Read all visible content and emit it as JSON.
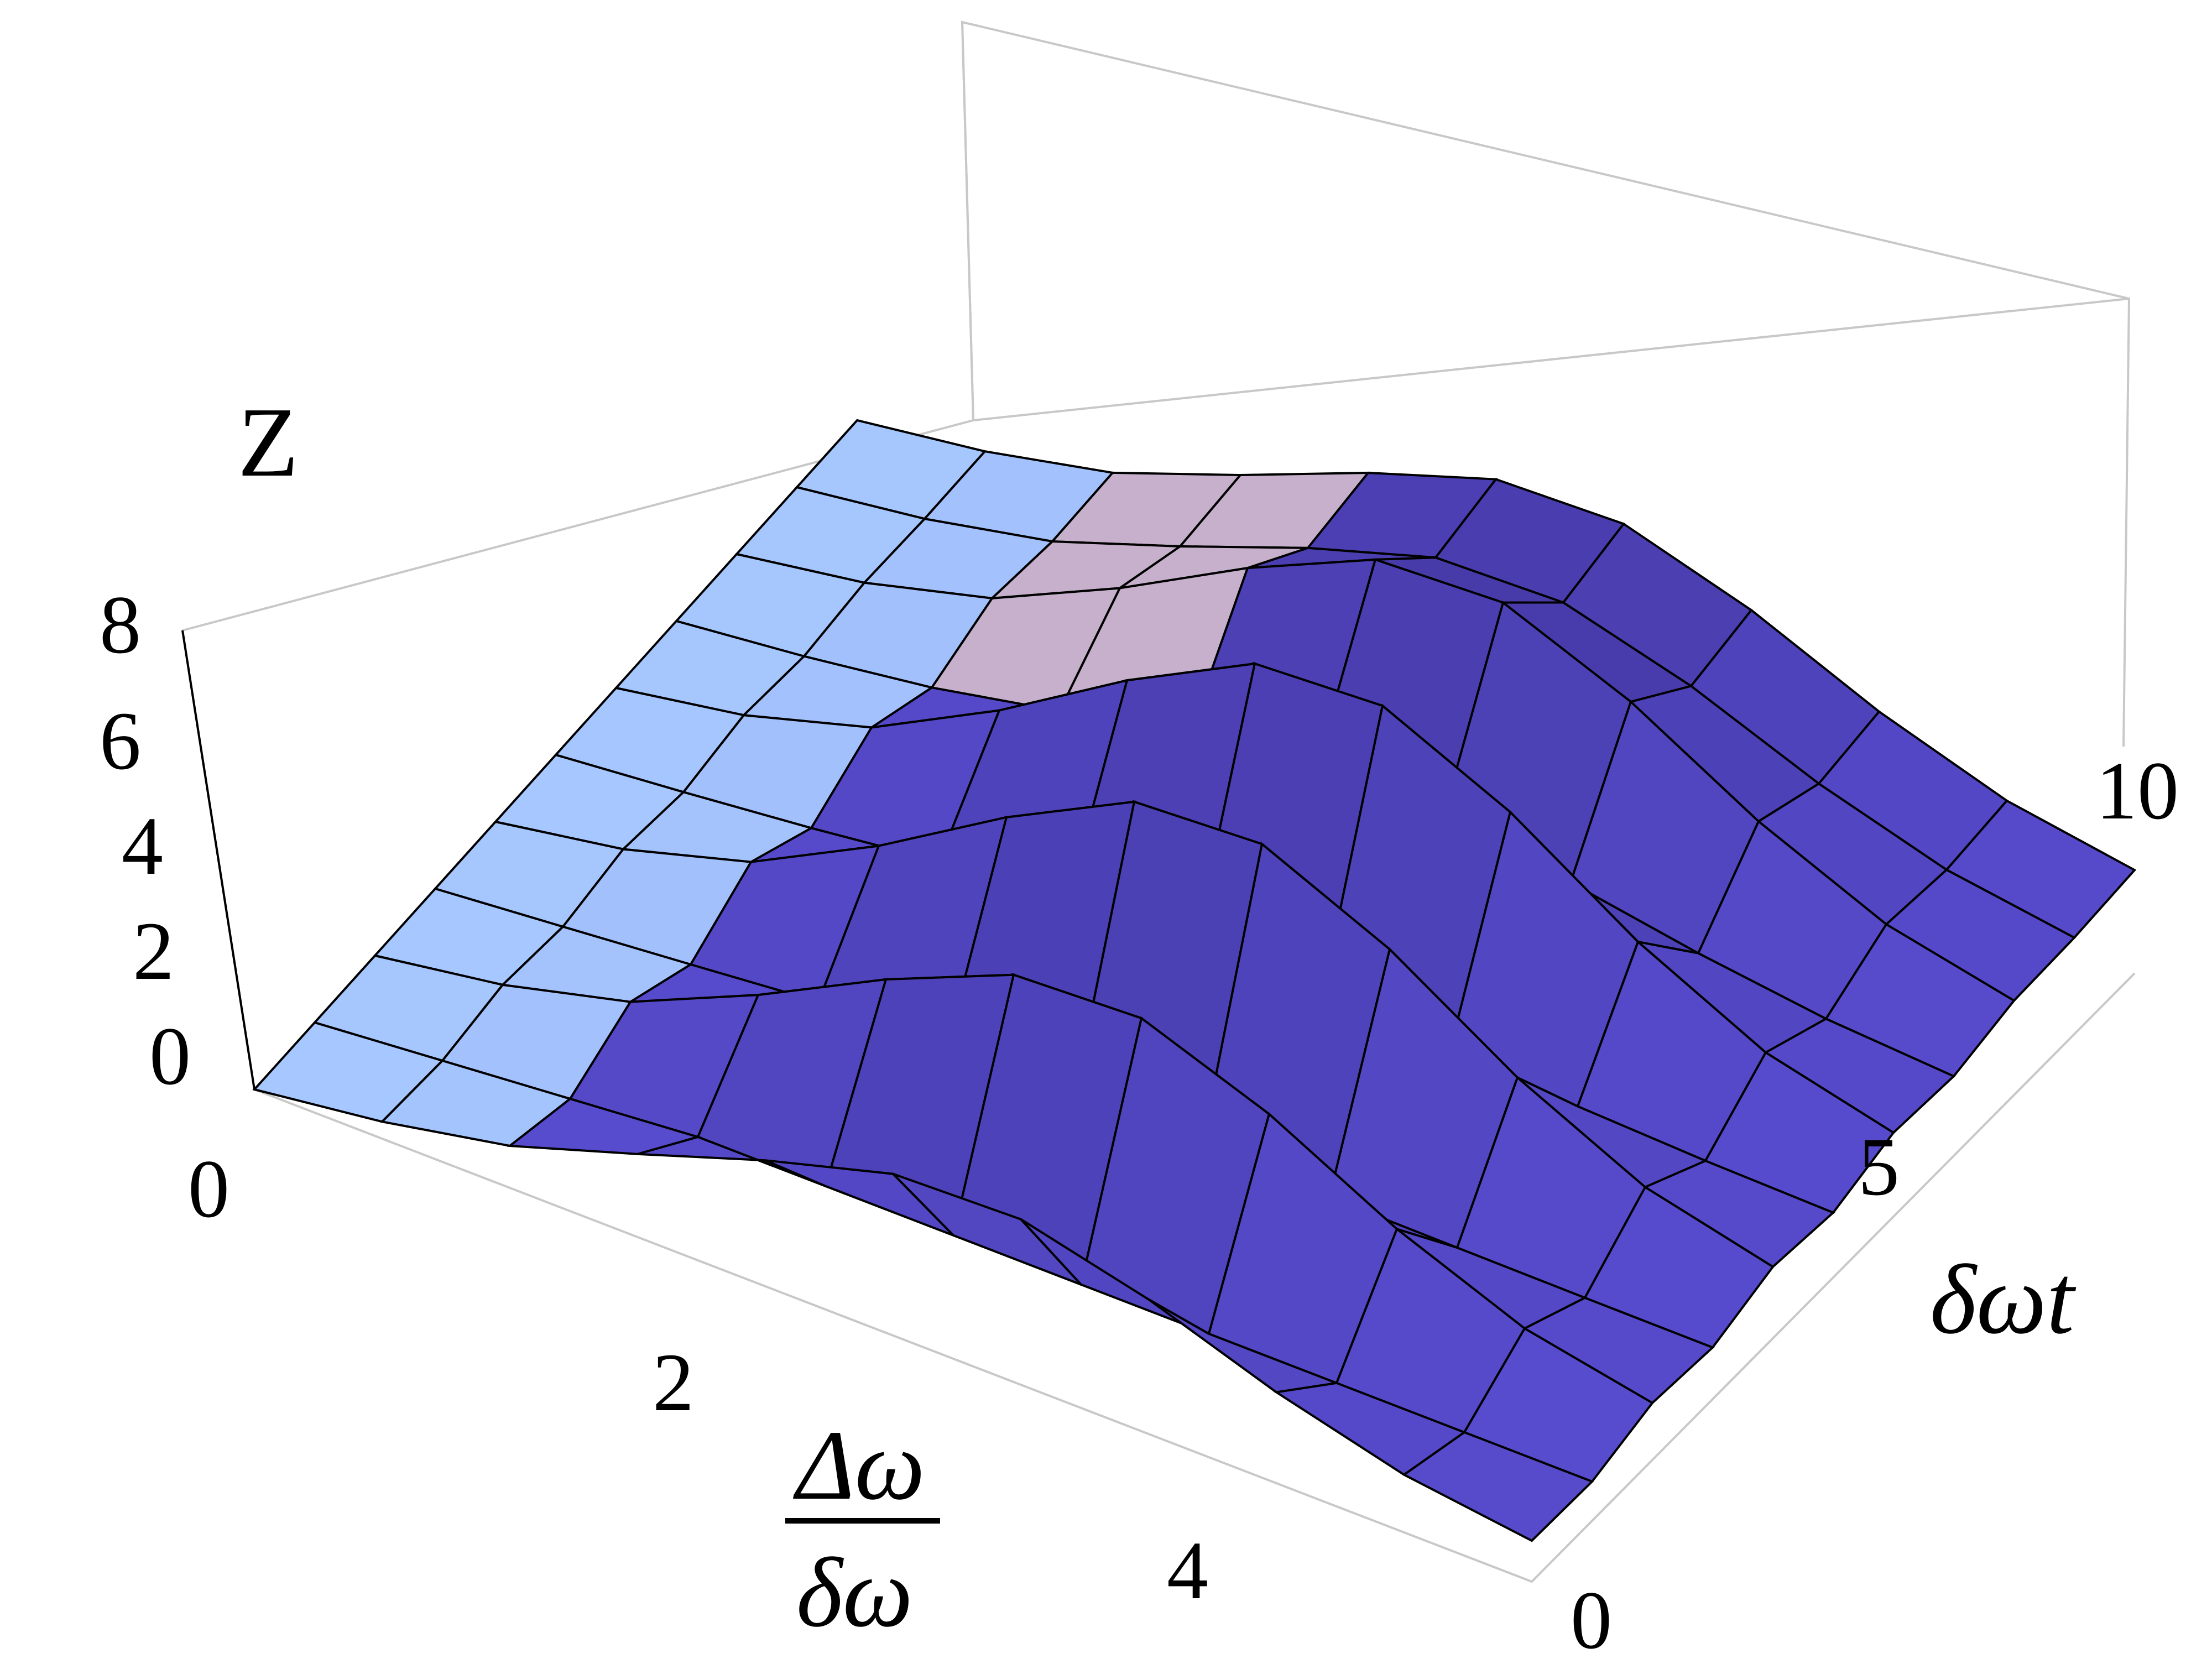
{
  "chart_data": {
    "type": "surface3d",
    "title": "",
    "axes": {
      "z": {
        "label": "Z",
        "range": [
          0,
          8
        ],
        "ticks": [
          "0",
          "2",
          "4",
          "6",
          "8"
        ]
      },
      "x": {
        "label_numerator": "Δω",
        "label_denominator": "δω",
        "range": [
          0,
          5
        ],
        "ticks": [
          "0",
          "2",
          "4"
        ]
      },
      "y": {
        "label": "δωt",
        "range": [
          0,
          10
        ],
        "ticks": [
          "0",
          "5",
          "10"
        ]
      }
    },
    "surface": {
      "description": "Z(Δω/δω, δωt); flat near Δω/δω≈0, rising into a broad hump near Δω/δω≈2.5, oscillating in δωt with sharp periodic peaks that grow toward large δωt",
      "grid_x": [
        0,
        0.5,
        1,
        1.5,
        2,
        2.5,
        3,
        3.5,
        4,
        4.5,
        5
      ],
      "grid_y": [
        0,
        1,
        2,
        3,
        4,
        5,
        6,
        7,
        8,
        9,
        10
      ]
    },
    "colors": {
      "low": "#a7c8ff",
      "mid": "#5b4fd6",
      "high": "#3b2f8f",
      "peak_glow": "#f4d9c7",
      "mesh": "#000000",
      "box": "#c8c8c8"
    }
  }
}
